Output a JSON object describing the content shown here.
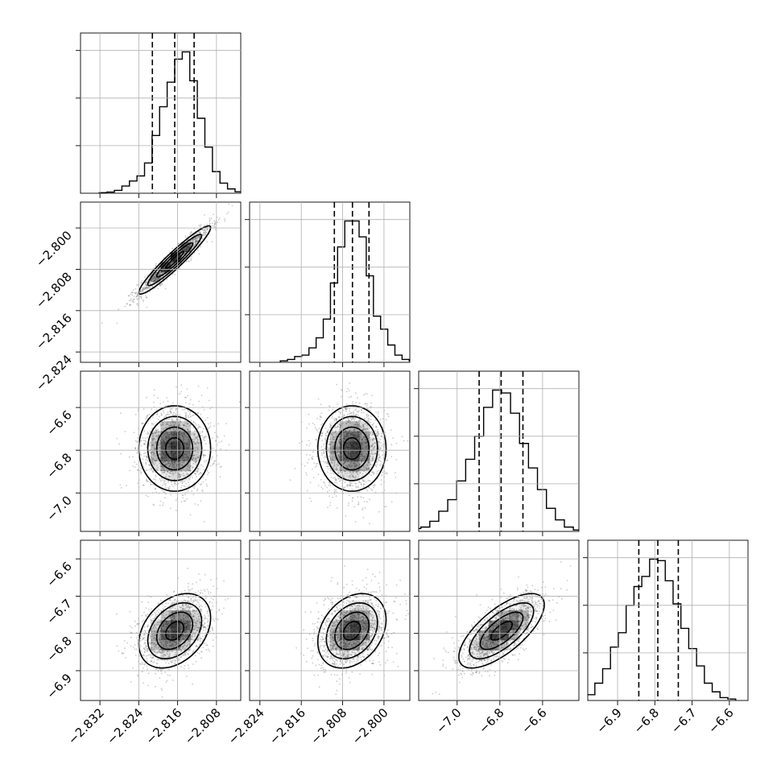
{
  "chart_data": {
    "type": "corner",
    "title": "",
    "n_params": 4,
    "parameters": [
      {
        "index": 0,
        "range": [
          -2.836,
          -2.803
        ],
        "ticks": [
          -2.832,
          -2.824,
          -2.816,
          -2.808
        ],
        "tick_labels": [
          "−2.832",
          "−2.824",
          "−2.816",
          "−2.808"
        ],
        "quantiles": [
          -2.8212,
          -2.8166,
          -2.8126
        ],
        "median": -2.8166,
        "sigma": 0.0037,
        "histogram_bins": [
          0.004,
          0.008,
          0.02,
          0.05,
          0.085,
          0.12,
          0.21,
          0.4,
          0.6,
          0.77,
          0.93,
          0.98,
          0.78,
          0.52,
          0.32,
          0.15,
          0.07,
          0.03,
          0.01,
          0.004
        ]
      },
      {
        "index": 1,
        "range": [
          -2.826,
          -2.795
        ],
        "ticks": [
          -2.824,
          -2.816,
          -2.808,
          -2.8
        ],
        "tick_labels": [
          "−2.824",
          "−2.816",
          "−2.808",
          "−2.800"
        ],
        "quantiles": [
          -2.8096,
          -2.8061,
          -2.8029
        ],
        "median": -2.8062,
        "sigma": 0.0033,
        "histogram_bins": [
          0.01,
          0.02,
          0.04,
          0.05,
          0.1,
          0.17,
          0.3,
          0.55,
          0.8,
          0.98,
          0.98,
          0.87,
          0.6,
          0.32,
          0.23,
          0.12,
          0.05,
          0.02,
          0.01,
          0.005
        ]
      },
      {
        "index": 2,
        "range": [
          -7.18,
          -6.43
        ],
        "ticks": [
          -7.0,
          -6.8,
          -6.6
        ],
        "tick_labels": [
          "−7.0",
          "−6.8",
          "−6.6"
        ],
        "quantiles": [
          -6.897,
          -6.794,
          -6.692
        ],
        "median": -6.792,
        "sigma": 0.1,
        "histogram_bins": [
          0.02,
          0.03,
          0.07,
          0.14,
          0.22,
          0.35,
          0.5,
          0.66,
          0.86,
          0.98,
          0.96,
          0.82,
          0.61,
          0.44,
          0.29,
          0.16,
          0.08,
          0.03,
          0.01,
          0.005
        ]
      },
      {
        "index": 3,
        "range": [
          -6.98,
          -6.55
        ],
        "ticks": [
          -6.9,
          -6.8,
          -6.7,
          -6.6
        ],
        "tick_labels": [
          "−6.9",
          "−6.8",
          "−6.7",
          "−6.6"
        ],
        "quantiles": [
          -6.843,
          -6.792,
          -6.737
        ],
        "median": -6.793,
        "sigma": 0.05,
        "histogram_bins": [
          0.01,
          0.04,
          0.12,
          0.22,
          0.37,
          0.47,
          0.66,
          0.79,
          0.86,
          0.98,
          0.97,
          0.83,
          0.67,
          0.5,
          0.36,
          0.24,
          0.12,
          0.06,
          0.02,
          0.01
        ]
      }
    ],
    "correlations": [
      [
        1.0,
        0.95,
        0.0,
        0.35
      ],
      [
        0.95,
        1.0,
        0.0,
        0.3
      ],
      [
        0.0,
        0.0,
        1.0,
        0.7
      ],
      [
        0.35,
        0.3,
        0.7,
        1.0
      ]
    ],
    "contour_levels_sigma": [
      0.5,
      1.0,
      1.5,
      2.0
    ],
    "grid": true,
    "colors": {
      "axes": "#000000",
      "grid": "#b0b0b0",
      "points": "#6a6a6a",
      "density": "#000000"
    }
  }
}
